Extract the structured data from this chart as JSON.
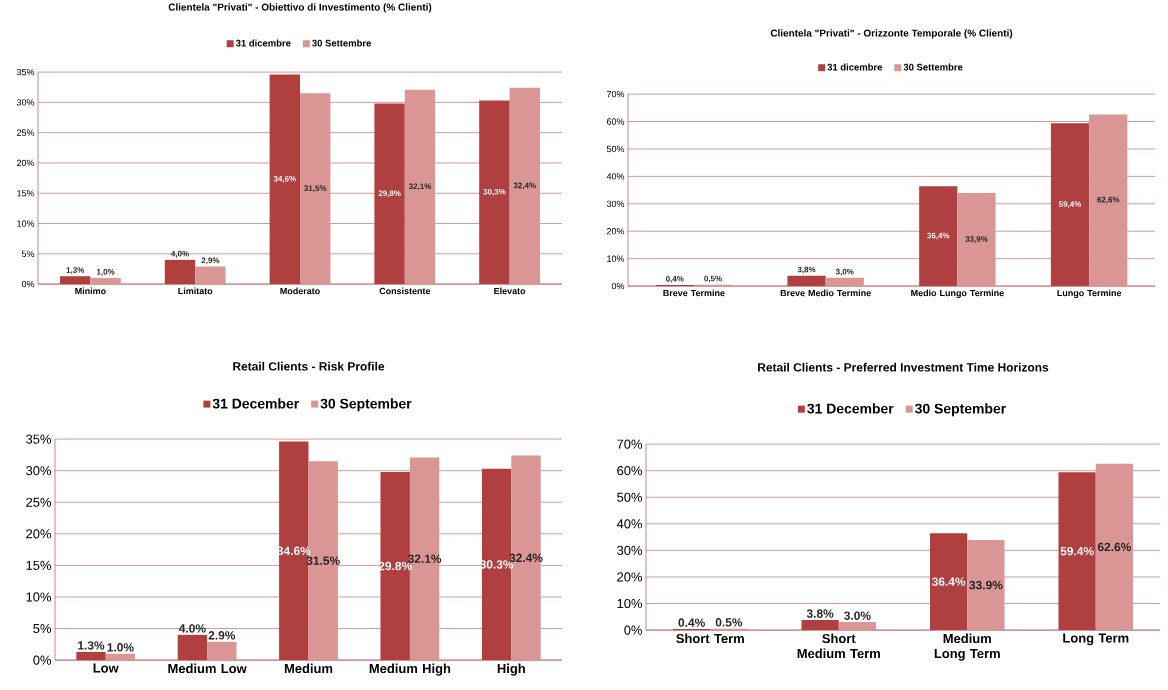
{
  "chart_data": [
    {
      "type": "bar",
      "title": "Clientela \"Privati\" - Obiettivo di Investimento (% Clienti)",
      "categories": [
        "Minimo",
        "Limitato",
        "Moderato",
        "Consistente",
        "Elevato"
      ],
      "series": [
        {
          "name": "31 dicembre",
          "color": "#b0403f",
          "values": [
            1.3,
            4.0,
            34.6,
            29.8,
            30.3
          ],
          "value_labels": [
            "1,3%",
            "4,0%",
            "34,6%",
            "29,8%",
            "30,3%"
          ]
        },
        {
          "name": "30 Settembre",
          "color": "#d99694",
          "values": [
            1.0,
            2.9,
            31.5,
            32.1,
            32.4
          ],
          "value_labels": [
            "1,0%",
            "2,9%",
            "31,5%",
            "32,1%",
            "32,4%"
          ]
        }
      ],
      "ylim": [
        0,
        35
      ],
      "yticks": [
        {
          "value": 0,
          "label": "0%"
        },
        {
          "value": 5,
          "label": "5%"
        },
        {
          "value": 10,
          "label": "10%"
        },
        {
          "value": 15,
          "label": "15%"
        },
        {
          "value": 20,
          "label": "20%"
        },
        {
          "value": 25,
          "label": "25%"
        },
        {
          "value": 30,
          "label": "30%"
        },
        {
          "value": 35,
          "label": "35%"
        }
      ],
      "grid": "y",
      "legend": "top"
    },
    {
      "type": "bar",
      "title": "Clientela \"Privati\" - Orizzonte Temporale (% Clienti)",
      "categories": [
        "Breve Termine",
        "Breve Medio Termine",
        "Medio Lungo Termine",
        "Lungo Termine"
      ],
      "series": [
        {
          "name": "31 dicembre",
          "color": "#b0403f",
          "values": [
            0.4,
            3.8,
            36.4,
            59.4
          ],
          "value_labels": [
            "0,4%",
            "3,8%",
            "36,4%",
            "59,4%"
          ]
        },
        {
          "name": "30 Settembre",
          "color": "#d99694",
          "values": [
            0.5,
            3.0,
            33.9,
            62.6
          ],
          "value_labels": [
            "0,5%",
            "3,0%",
            "33,9%",
            "62,6%"
          ]
        }
      ],
      "ylim": [
        0,
        70
      ],
      "yticks": [
        {
          "value": 0,
          "label": "0%"
        },
        {
          "value": 10,
          "label": "10%"
        },
        {
          "value": 20,
          "label": "20%"
        },
        {
          "value": 30,
          "label": "30%"
        },
        {
          "value": 40,
          "label": "40%"
        },
        {
          "value": 50,
          "label": "50%"
        },
        {
          "value": 60,
          "label": "60%"
        },
        {
          "value": 70,
          "label": "70%"
        }
      ],
      "grid": "y",
      "legend": "top"
    },
    {
      "type": "bar",
      "title": "Retail Clients - Risk Profile",
      "categories": [
        "Low",
        "Medium Low",
        "Medium",
        "Medium High",
        "High"
      ],
      "series": [
        {
          "name": "31 December",
          "color": "#b0403f",
          "values": [
            1.3,
            4.0,
            34.6,
            29.8,
            30.3
          ],
          "value_labels": [
            "1.3%",
            "4.0%",
            "34.6%",
            "29.8%",
            "30.3%"
          ]
        },
        {
          "name": "30 September",
          "color": "#d99694",
          "values": [
            1.0,
            2.9,
            31.5,
            32.1,
            32.4
          ],
          "value_labels": [
            "1.0%",
            "2.9%",
            "31.5%",
            "32.1%",
            "32.4%"
          ]
        }
      ],
      "ylim": [
        0,
        35
      ],
      "yticks": [
        {
          "value": 0,
          "label": "0%"
        },
        {
          "value": 5,
          "label": "5%"
        },
        {
          "value": 10,
          "label": "10%"
        },
        {
          "value": 15,
          "label": "15%"
        },
        {
          "value": 20,
          "label": "20%"
        },
        {
          "value": 25,
          "label": "25%"
        },
        {
          "value": 30,
          "label": "30%"
        },
        {
          "value": 35,
          "label": "35%"
        }
      ],
      "grid": "y",
      "legend": "top"
    },
    {
      "type": "bar",
      "title": "Retail Clients - Preferred Investment Time Horizons",
      "categories": [
        "Short Term",
        "Short Medium Term",
        "Medium Long Term",
        "Long Term"
      ],
      "series": [
        {
          "name": "31 December",
          "color": "#b0403f",
          "values": [
            0.4,
            3.8,
            36.4,
            59.4
          ],
          "value_labels": [
            "0.4%",
            "3.8%",
            "36.4%",
            "59.4%"
          ]
        },
        {
          "name": "30 September",
          "color": "#d99694",
          "values": [
            0.5,
            3.0,
            33.9,
            62.6
          ],
          "value_labels": [
            "0.5%",
            "3.0%",
            "33.9%",
            "62.6%"
          ]
        }
      ],
      "ylim": [
        0,
        70
      ],
      "yticks": [
        {
          "value": 0,
          "label": "0%"
        },
        {
          "value": 10,
          "label": "10%"
        },
        {
          "value": 20,
          "label": "20%"
        },
        {
          "value": 30,
          "label": "30%"
        },
        {
          "value": 40,
          "label": "40%"
        },
        {
          "value": 50,
          "label": "50%"
        },
        {
          "value": 60,
          "label": "60%"
        },
        {
          "value": 70,
          "label": "70%"
        }
      ],
      "grid": "y",
      "legend": "top"
    }
  ]
}
